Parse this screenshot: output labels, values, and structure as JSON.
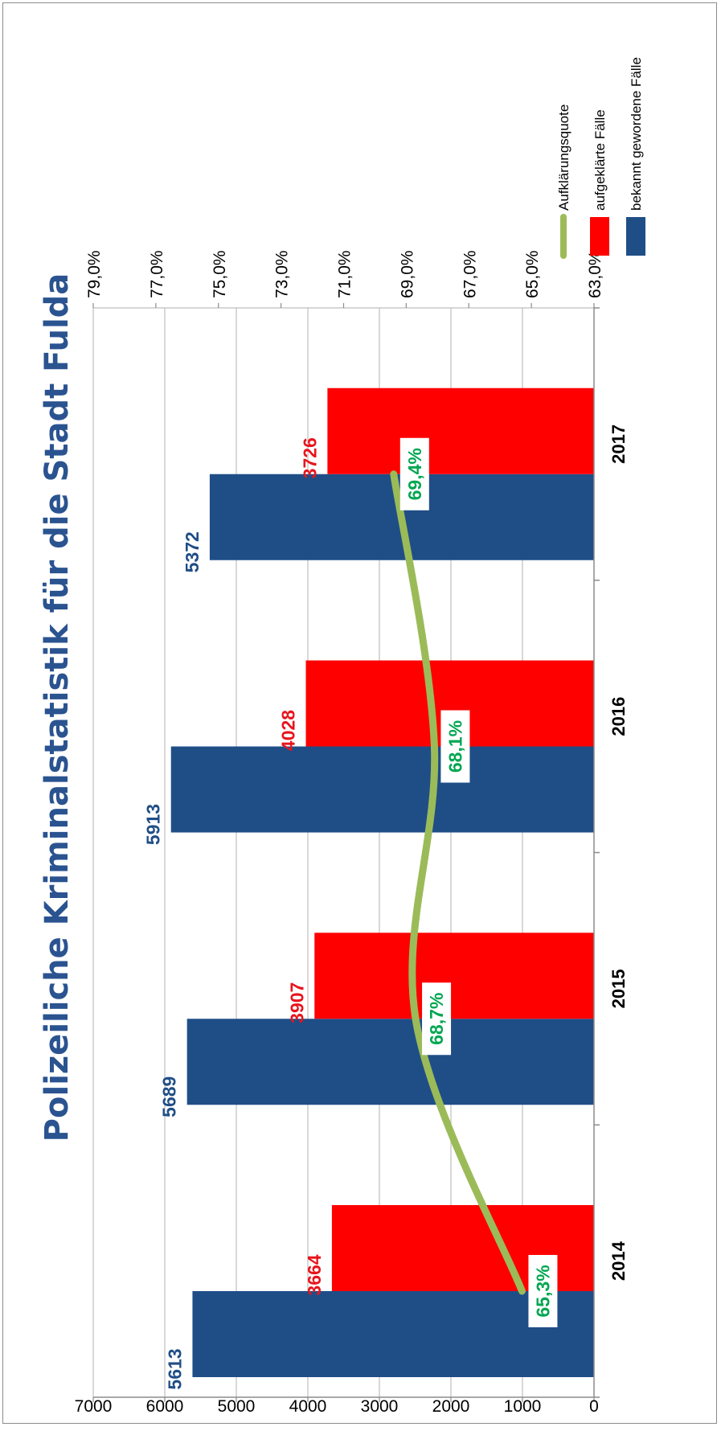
{
  "chart_data": {
    "type": "bar",
    "title": "Polizeiliche Kriminalstatistik für die Stadt Fulda",
    "categories": [
      "2014",
      "2015",
      "2016",
      "2017"
    ],
    "series": [
      {
        "name": "bekannt gewordene Fälle",
        "type": "bar",
        "axis": "left",
        "color": "#1f4e87",
        "values": [
          5613,
          5689,
          5913,
          5372
        ],
        "labels": [
          "5613",
          "5689",
          "5913",
          "5372"
        ]
      },
      {
        "name": "aufgeklärte Fälle",
        "type": "bar",
        "axis": "left",
        "color": "#ff0000",
        "values": [
          3664,
          3907,
          4028,
          3726
        ],
        "labels": [
          "3664",
          "3907",
          "4028",
          "3726"
        ]
      },
      {
        "name": "Aufklärungsquote",
        "type": "line",
        "axis": "right",
        "color": "#9bbb59",
        "values": [
          65.3,
          68.7,
          68.1,
          69.4
        ],
        "labels": [
          "65,3%",
          "68,7%",
          "68,1%",
          "69,4%"
        ]
      }
    ],
    "y_left": {
      "min": 0,
      "max": 7000,
      "ticks": [
        "0",
        "1000",
        "2000",
        "3000",
        "4000",
        "5000",
        "6000",
        "7000"
      ]
    },
    "y_right": {
      "min": 63,
      "max": 79,
      "ticks": [
        "63,0%",
        "65,0%",
        "67,0%",
        "69,0%",
        "71,0%",
        "73,0%",
        "75,0%",
        "77,0%",
        "79,0%"
      ]
    },
    "grid": true,
    "legend_position": "top-right",
    "label_colors": {
      "bar1": "#1f4e87",
      "bar2": "#e8141c",
      "line": "#00a650"
    }
  }
}
